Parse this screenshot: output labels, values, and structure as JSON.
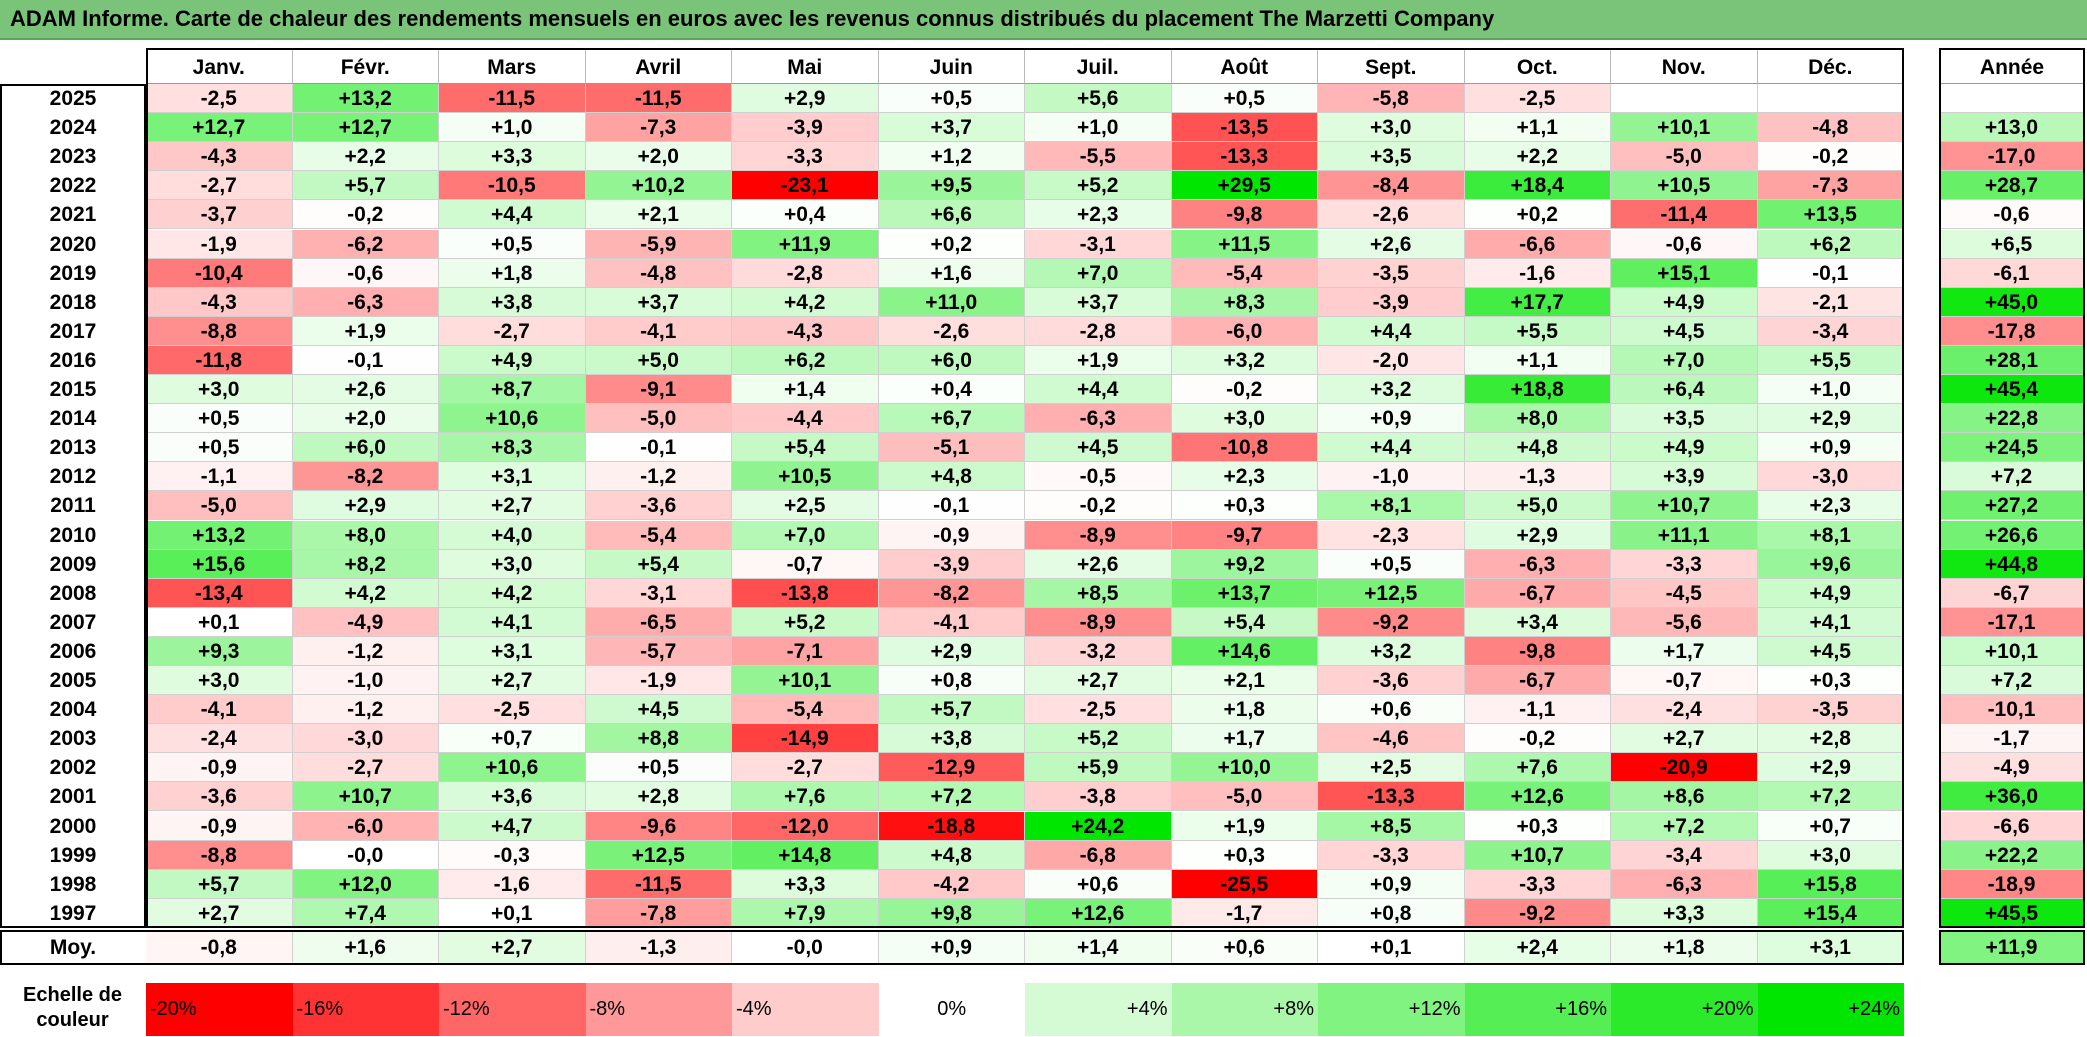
{
  "title": "ADAM Informe. Carte de chaleur des rendements mensuels en euros avec les revenus connus distribués du placement The Marzetti Company",
  "chart_data": {
    "type": "heatmap",
    "months": [
      "Janv.",
      "Févr.",
      "Mars",
      "Avril",
      "Mai",
      "Juin",
      "Juil.",
      "Août",
      "Sept.",
      "Oct.",
      "Nov.",
      "Déc."
    ],
    "year_header": "Année",
    "rows": [
      {
        "year": "2025",
        "values": [
          "-2,5",
          "+13,2",
          "-11,5",
          "-11,5",
          "+2,9",
          "+0,5",
          "+5,6",
          "+0,5",
          "-5,8",
          "-2,5",
          "",
          ""
        ],
        "annual": ""
      },
      {
        "year": "2024",
        "values": [
          "+12,7",
          "+12,7",
          "+1,0",
          "-7,3",
          "-3,9",
          "+3,7",
          "+1,0",
          "-13,5",
          "+3,0",
          "+1,1",
          "+10,1",
          "-4,8"
        ],
        "annual": "+13,0"
      },
      {
        "year": "2023",
        "values": [
          "-4,3",
          "+2,2",
          "+3,3",
          "+2,0",
          "-3,3",
          "+1,2",
          "-5,5",
          "-13,3",
          "+3,5",
          "+2,2",
          "-5,0",
          "-0,2"
        ],
        "annual": "-17,0"
      },
      {
        "year": "2022",
        "values": [
          "-2,7",
          "+5,7",
          "-10,5",
          "+10,2",
          "-23,1",
          "+9,5",
          "+5,2",
          "+29,5",
          "-8,4",
          "+18,4",
          "+10,5",
          "-7,3"
        ],
        "annual": "+28,7"
      },
      {
        "year": "2021",
        "values": [
          "-3,7",
          "-0,2",
          "+4,4",
          "+2,1",
          "+0,4",
          "+6,6",
          "+2,3",
          "-9,8",
          "-2,6",
          "+0,2",
          "-11,4",
          "+13,5"
        ],
        "annual": "-0,6"
      },
      {
        "year": "2020",
        "values": [
          "-1,9",
          "-6,2",
          "+0,5",
          "-5,9",
          "+11,9",
          "+0,2",
          "-3,1",
          "+11,5",
          "+2,6",
          "-6,6",
          "-0,6",
          "+6,2"
        ],
        "annual": "+6,5"
      },
      {
        "year": "2019",
        "values": [
          "-10,4",
          "-0,6",
          "+1,8",
          "-4,8",
          "-2,8",
          "+1,6",
          "+7,0",
          "-5,4",
          "-3,5",
          "-1,6",
          "+15,1",
          "-0,1"
        ],
        "annual": "-6,1"
      },
      {
        "year": "2018",
        "values": [
          "-4,3",
          "-6,3",
          "+3,8",
          "+3,7",
          "+4,2",
          "+11,0",
          "+3,7",
          "+8,3",
          "-3,9",
          "+17,7",
          "+4,9",
          "-2,1"
        ],
        "annual": "+45,0"
      },
      {
        "year": "2017",
        "values": [
          "-8,8",
          "+1,9",
          "-2,7",
          "-4,1",
          "-4,3",
          "-2,6",
          "-2,8",
          "-6,0",
          "+4,4",
          "+5,5",
          "+4,5",
          "-3,4"
        ],
        "annual": "-17,8"
      },
      {
        "year": "2016",
        "values": [
          "-11,8",
          "-0,1",
          "+4,9",
          "+5,0",
          "+6,2",
          "+6,0",
          "+1,9",
          "+3,2",
          "-2,0",
          "+1,1",
          "+7,0",
          "+5,5"
        ],
        "annual": "+28,1"
      },
      {
        "year": "2015",
        "values": [
          "+3,0",
          "+2,6",
          "+8,7",
          "-9,1",
          "+1,4",
          "+0,4",
          "+4,4",
          "-0,2",
          "+3,2",
          "+18,8",
          "+6,4",
          "+1,0"
        ],
        "annual": "+45,4"
      },
      {
        "year": "2014",
        "values": [
          "+0,5",
          "+2,0",
          "+10,6",
          "-5,0",
          "-4,4",
          "+6,7",
          "-6,3",
          "+3,0",
          "+0,9",
          "+8,0",
          "+3,5",
          "+2,9"
        ],
        "annual": "+22,8"
      },
      {
        "year": "2013",
        "values": [
          "+0,5",
          "+6,0",
          "+8,3",
          "-0,1",
          "+5,4",
          "-5,1",
          "+4,5",
          "-10,8",
          "+4,4",
          "+4,8",
          "+4,9",
          "+0,9"
        ],
        "annual": "+24,5"
      },
      {
        "year": "2012",
        "values": [
          "-1,1",
          "-8,2",
          "+3,1",
          "-1,2",
          "+10,5",
          "+4,8",
          "-0,5",
          "+2,3",
          "-1,0",
          "-1,3",
          "+3,9",
          "-3,0"
        ],
        "annual": "+7,2"
      },
      {
        "year": "2011",
        "values": [
          "-5,0",
          "+2,9",
          "+2,7",
          "-3,6",
          "+2,5",
          "-0,1",
          "-0,2",
          "+0,3",
          "+8,1",
          "+5,0",
          "+10,7",
          "+2,3"
        ],
        "annual": "+27,2"
      },
      {
        "year": "2010",
        "values": [
          "+13,2",
          "+8,0",
          "+4,0",
          "-5,4",
          "+7,0",
          "-0,9",
          "-8,9",
          "-9,7",
          "-2,3",
          "+2,9",
          "+11,1",
          "+8,1"
        ],
        "annual": "+26,6"
      },
      {
        "year": "2009",
        "values": [
          "+15,6",
          "+8,2",
          "+3,0",
          "+5,4",
          "-0,7",
          "-3,9",
          "+2,6",
          "+9,2",
          "+0,5",
          "-6,3",
          "-3,3",
          "+9,6"
        ],
        "annual": "+44,8"
      },
      {
        "year": "2008",
        "values": [
          "-13,4",
          "+4,2",
          "+4,2",
          "-3,1",
          "-13,8",
          "-8,2",
          "+8,5",
          "+13,7",
          "+12,5",
          "-6,7",
          "-4,5",
          "+4,9"
        ],
        "annual": "-6,7"
      },
      {
        "year": "2007",
        "values": [
          "+0,1",
          "-4,9",
          "+4,1",
          "-6,5",
          "+5,2",
          "-4,1",
          "-8,9",
          "+5,4",
          "-9,2",
          "+3,4",
          "-5,6",
          "+4,1"
        ],
        "annual": "-17,1"
      },
      {
        "year": "2006",
        "values": [
          "+9,3",
          "-1,2",
          "+3,1",
          "-5,7",
          "-7,1",
          "+2,9",
          "-3,2",
          "+14,6",
          "+3,2",
          "-9,8",
          "+1,7",
          "+4,5"
        ],
        "annual": "+10,1"
      },
      {
        "year": "2005",
        "values": [
          "+3,0",
          "-1,0",
          "+2,7",
          "-1,9",
          "+10,1",
          "+0,8",
          "+2,7",
          "+2,1",
          "-3,6",
          "-6,7",
          "-0,7",
          "+0,3"
        ],
        "annual": "+7,2"
      },
      {
        "year": "2004",
        "values": [
          "-4,1",
          "-1,2",
          "-2,5",
          "+4,5",
          "-5,4",
          "+5,7",
          "-2,5",
          "+1,8",
          "+0,6",
          "-1,1",
          "-2,4",
          "-3,5"
        ],
        "annual": "-10,1"
      },
      {
        "year": "2003",
        "values": [
          "-2,4",
          "-3,0",
          "+0,7",
          "+8,8",
          "-14,9",
          "+3,8",
          "+5,2",
          "+1,7",
          "-4,6",
          "-0,2",
          "+2,7",
          "+2,8"
        ],
        "annual": "-1,7"
      },
      {
        "year": "2002",
        "values": [
          "-0,9",
          "-2,7",
          "+10,6",
          "+0,5",
          "-2,7",
          "-12,9",
          "+5,9",
          "+10,0",
          "+2,5",
          "+7,6",
          "-20,9",
          "+2,9"
        ],
        "annual": "-4,9"
      },
      {
        "year": "2001",
        "values": [
          "-3,6",
          "+10,7",
          "+3,6",
          "+2,8",
          "+7,6",
          "+7,2",
          "-3,8",
          "-5,0",
          "-13,3",
          "+12,6",
          "+8,6",
          "+7,2"
        ],
        "annual": "+36,0"
      },
      {
        "year": "2000",
        "values": [
          "-0,9",
          "-6,0",
          "+4,7",
          "-9,6",
          "-12,0",
          "-18,8",
          "+24,2",
          "+1,9",
          "+8,5",
          "+0,3",
          "+7,2",
          "+0,7"
        ],
        "annual": "-6,6"
      },
      {
        "year": "1999",
        "values": [
          "-8,8",
          "-0,0",
          "-0,3",
          "+12,5",
          "+14,8",
          "+4,8",
          "-6,8",
          "+0,3",
          "-3,3",
          "+10,7",
          "-3,4",
          "+3,0"
        ],
        "annual": "+22,2"
      },
      {
        "year": "1998",
        "values": [
          "+5,7",
          "+12,0",
          "-1,6",
          "-11,5",
          "+3,3",
          "-4,2",
          "+0,6",
          "-25,5",
          "+0,9",
          "-3,3",
          "-6,3",
          "+15,8"
        ],
        "annual": "-18,9"
      },
      {
        "year": "1997",
        "values": [
          "+2,7",
          "+7,4",
          "+0,1",
          "-7,8",
          "+7,9",
          "+9,8",
          "+12,6",
          "-1,7",
          "+0,8",
          "-9,2",
          "+3,3",
          "+15,4"
        ],
        "annual": "+45,5"
      }
    ],
    "average": {
      "label": "Moy.",
      "values": [
        "-0,8",
        "+1,6",
        "+2,7",
        "-1,3",
        "-0,0",
        "+0,9",
        "+1,4",
        "+0,6",
        "+0,1",
        "+2,4",
        "+1,8",
        "+3,1"
      ],
      "annual": "+11,9"
    },
    "scale": {
      "label_line1": "Echelle de",
      "label_line2": "couleur",
      "labels": [
        "-20%",
        "-16%",
        "-12%",
        "-8%",
        "-4%",
        "0%",
        "+4%",
        "+8%",
        "+12%",
        "+16%",
        "+20%",
        "+24%"
      ],
      "values": [
        -20,
        -16,
        -12,
        -8,
        -4,
        0,
        4,
        8,
        12,
        16,
        20,
        24
      ]
    },
    "colors": {
      "negative": "#ff0000",
      "positive": "#00e600",
      "neutral": "#ffffff",
      "title_bar": "#7ac47a"
    }
  }
}
